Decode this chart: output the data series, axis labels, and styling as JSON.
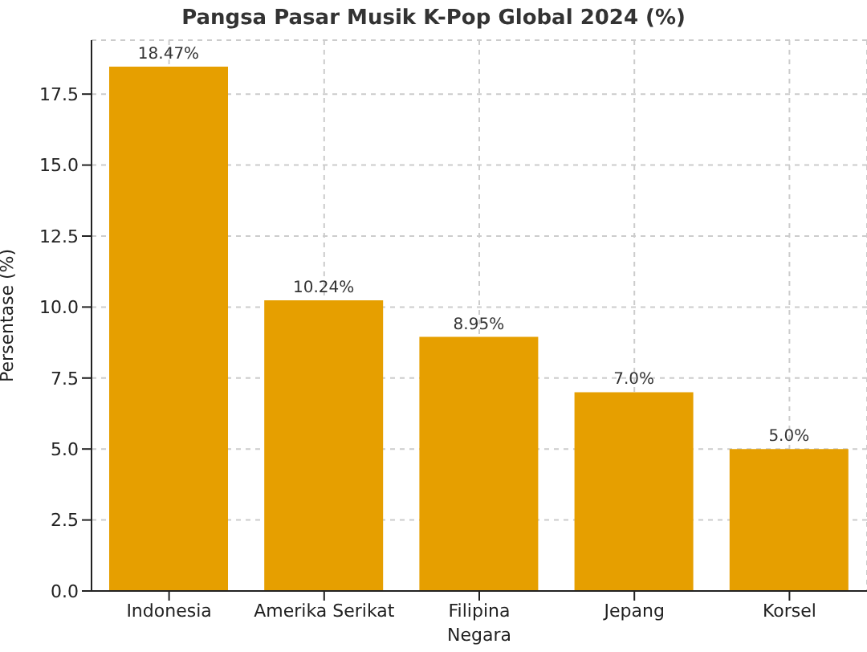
{
  "chart_data": {
    "type": "bar",
    "title": "Pangsa Pasar Musik K-Pop Global 2024 (%)",
    "xlabel": "Negara",
    "ylabel": "Persentase (%)",
    "categories": [
      "Indonesia",
      "Amerika Serikat",
      "Filipina",
      "Jepang",
      "Korsel"
    ],
    "values": [
      18.47,
      10.24,
      8.95,
      7.0,
      5.0
    ],
    "value_labels": [
      "18.47%",
      "10.24%",
      "8.95%",
      "7.0%",
      "5.0%"
    ],
    "color": "#e69f00",
    "ylim": [
      0,
      19.4
    ],
    "yticks": [
      {
        "value": 0,
        "label": "0.0"
      },
      {
        "value": 2.5,
        "label": "2.5"
      },
      {
        "value": 5,
        "label": "5.0"
      },
      {
        "value": 7.5,
        "label": "7.5"
      },
      {
        "value": 10,
        "label": "10.0"
      },
      {
        "value": 12.5,
        "label": "12.5"
      },
      {
        "value": 15,
        "label": "15.0"
      },
      {
        "value": 17.5,
        "label": "17.5"
      }
    ],
    "grid": true
  }
}
